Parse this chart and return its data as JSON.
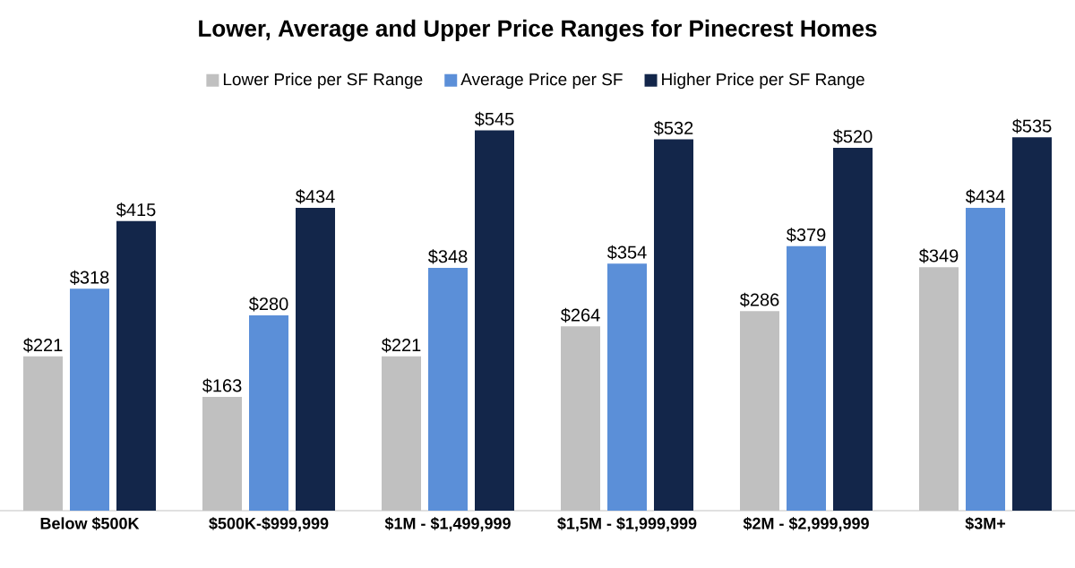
{
  "chart_data": {
    "type": "bar",
    "title": "Lower, Average and Upper Price Ranges for Pinecrest Homes",
    "categories": [
      "Below $500K",
      "$500K-$999,999",
      "$1M - $1,499,999",
      "$1,5M - $1,999,999",
      "$2M - $2,999,999",
      "$3M+"
    ],
    "series": [
      {
        "name": "Lower Price per SF Range",
        "color": "#c0c0c0",
        "values": [
          221,
          163,
          221,
          264,
          286,
          349
        ],
        "value_labels": [
          "$221",
          "$163",
          "$221",
          "$264",
          "$286",
          "$349"
        ]
      },
      {
        "name": "Average Price per SF",
        "color": "#5b8fd8",
        "values": [
          318,
          280,
          348,
          354,
          379,
          434
        ],
        "value_labels": [
          "$318",
          "$280",
          "$348",
          "$354",
          "$379",
          "$434"
        ]
      },
      {
        "name": "Higher Price per SF Range",
        "color": "#13264a",
        "values": [
          415,
          434,
          545,
          532,
          520,
          535
        ],
        "value_labels": [
          "$415",
          "$434",
          "$545",
          "$532",
          "$520",
          "$535"
        ]
      }
    ],
    "legend": "top"
  }
}
